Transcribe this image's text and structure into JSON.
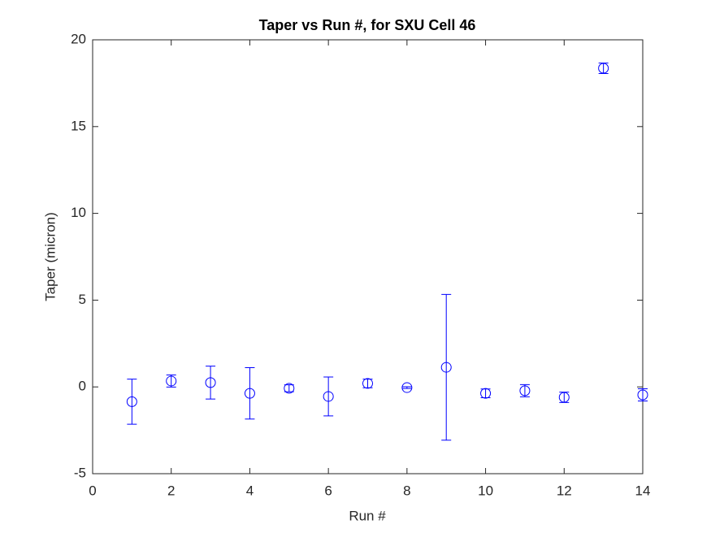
{
  "chart_data": {
    "type": "errorbar",
    "title": "Taper vs Run #, for SXU Cell 46",
    "xlabel": "Run #",
    "ylabel": "Taper (micron)",
    "x": [
      1,
      2,
      3,
      4,
      5,
      6,
      7,
      8,
      9,
      10,
      11,
      12,
      13,
      14
    ],
    "series": [
      {
        "color": "#0000ff",
        "values": [
          -0.85,
          0.34,
          0.25,
          -0.37,
          -0.08,
          -0.55,
          0.2,
          -0.04,
          1.13,
          -0.37,
          -0.22,
          -0.6,
          18.36,
          -0.46
        ],
        "errors": [
          1.3,
          0.35,
          0.95,
          1.48,
          0.2,
          1.12,
          0.25,
          0.05,
          4.2,
          0.25,
          0.35,
          0.3,
          0.3,
          0.35
        ]
      }
    ],
    "xlim": [
      0,
      14
    ],
    "xticks": [
      0,
      2,
      4,
      6,
      8,
      10,
      12,
      14
    ],
    "ylim": [
      -5,
      20
    ],
    "yticks": [
      -5,
      0,
      5,
      10,
      15,
      20
    ]
  }
}
